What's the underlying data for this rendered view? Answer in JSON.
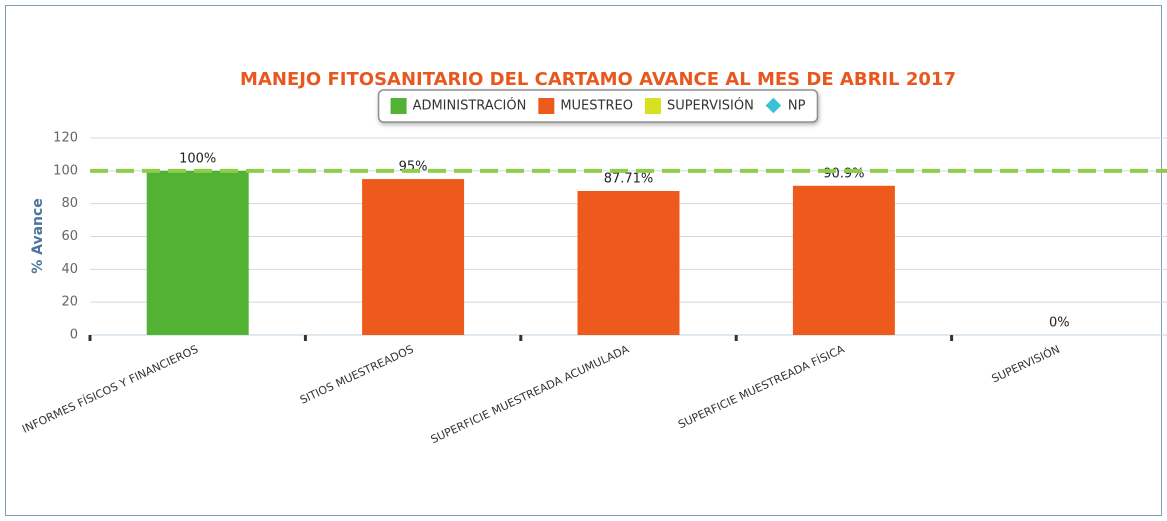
{
  "chart_data": {
    "type": "bar",
    "title": "MANEJO FITOSANITARIO DEL CARTAMO AVANCE AL MES DE ABRIL 2017",
    "y_label": "% Avance",
    "categories": [
      "INFORMES FÍSICOS Y FINANCIEROS",
      "SITIOS MUESTREADOS",
      "SUPERFICIE MUESTREADA ACUMULADA",
      "SUPERFICIE MUESTREADA FÍSICA",
      "SUPERVISIÓN"
    ],
    "values": [
      100,
      95,
      87.71,
      90.9,
      0
    ],
    "value_labels": [
      "100%",
      "95%",
      "87.71%",
      "90.9%",
      "0%"
    ],
    "bar_colors": [
      "#52b233",
      "#ee5a1c",
      "#ee5a1c",
      "#ee5a1c",
      "#d9e021"
    ],
    "legend": [
      {
        "name": "ADMINISTRACIÓN",
        "color": "#52b233",
        "symbol": "square"
      },
      {
        "name": "MUESTREO",
        "color": "#ee5a1c",
        "symbol": "square"
      },
      {
        "name": "SUPERVISIÓN",
        "color": "#d9e021",
        "symbol": "square"
      },
      {
        "name": "NP",
        "color": "#3ac0d8",
        "symbol": "diamond"
      }
    ],
    "reference_line": {
      "value": 100,
      "color": "#8fcc4a"
    },
    "ylim": [
      0,
      120
    ],
    "yticks": [
      0,
      20,
      40,
      60,
      80,
      100,
      120
    ],
    "grid": true
  }
}
